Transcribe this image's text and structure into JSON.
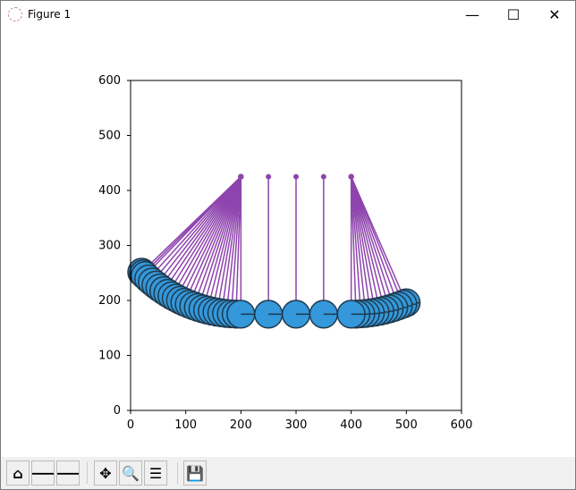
{
  "window": {
    "title": "Figure 1",
    "minimize": "—",
    "maximize": "☐",
    "close": "✕"
  },
  "toolbar": {
    "buttons": [
      {
        "name": "home-button",
        "icon": "home-icon",
        "glyph": "⌂"
      },
      {
        "name": "back-button",
        "icon": "arrow-left-icon",
        "glyph": "🡐"
      },
      {
        "name": "forward-button",
        "icon": "arrow-right-icon",
        "glyph": "🡒"
      },
      {
        "name": "pan-button",
        "icon": "move-icon",
        "glyph": "✥"
      },
      {
        "name": "zoom-button",
        "icon": "magnifier-icon",
        "glyph": "🔍"
      },
      {
        "name": "configure-subplots-button",
        "icon": "sliders-icon",
        "glyph": "☰"
      },
      {
        "name": "save-button",
        "icon": "floppy-disk-icon",
        "glyph": "💾"
      }
    ]
  },
  "chart_data": {
    "type": "scatter",
    "xlim": [
      0,
      600
    ],
    "ylim": [
      0,
      600
    ],
    "xticks": [
      "0",
      "100",
      "200",
      "300",
      "400",
      "500",
      "600"
    ],
    "yticks": [
      "0",
      "100",
      "200",
      "300",
      "400",
      "500",
      "600"
    ],
    "grid": false,
    "pivots": [
      [
        200,
        425
      ],
      [
        250,
        425
      ],
      [
        300,
        425
      ],
      [
        350,
        425
      ],
      [
        400,
        425
      ]
    ],
    "string_length": 250,
    "ball_radius": 25,
    "left_trace_angles_deg": [
      0,
      2,
      4,
      6,
      8,
      10,
      12,
      14,
      16,
      18,
      20,
      22,
      24,
      26,
      28,
      30,
      32,
      34,
      36,
      38,
      40,
      42,
      44,
      45,
      46
    ],
    "right_trace_angles_deg": [
      0,
      2,
      4,
      6,
      8,
      10,
      12,
      14,
      16,
      18,
      20,
      22,
      23.5
    ],
    "colors": {
      "string": "#8e44ad",
      "ball": "#3498db",
      "edge": "#1f3a4d"
    }
  }
}
